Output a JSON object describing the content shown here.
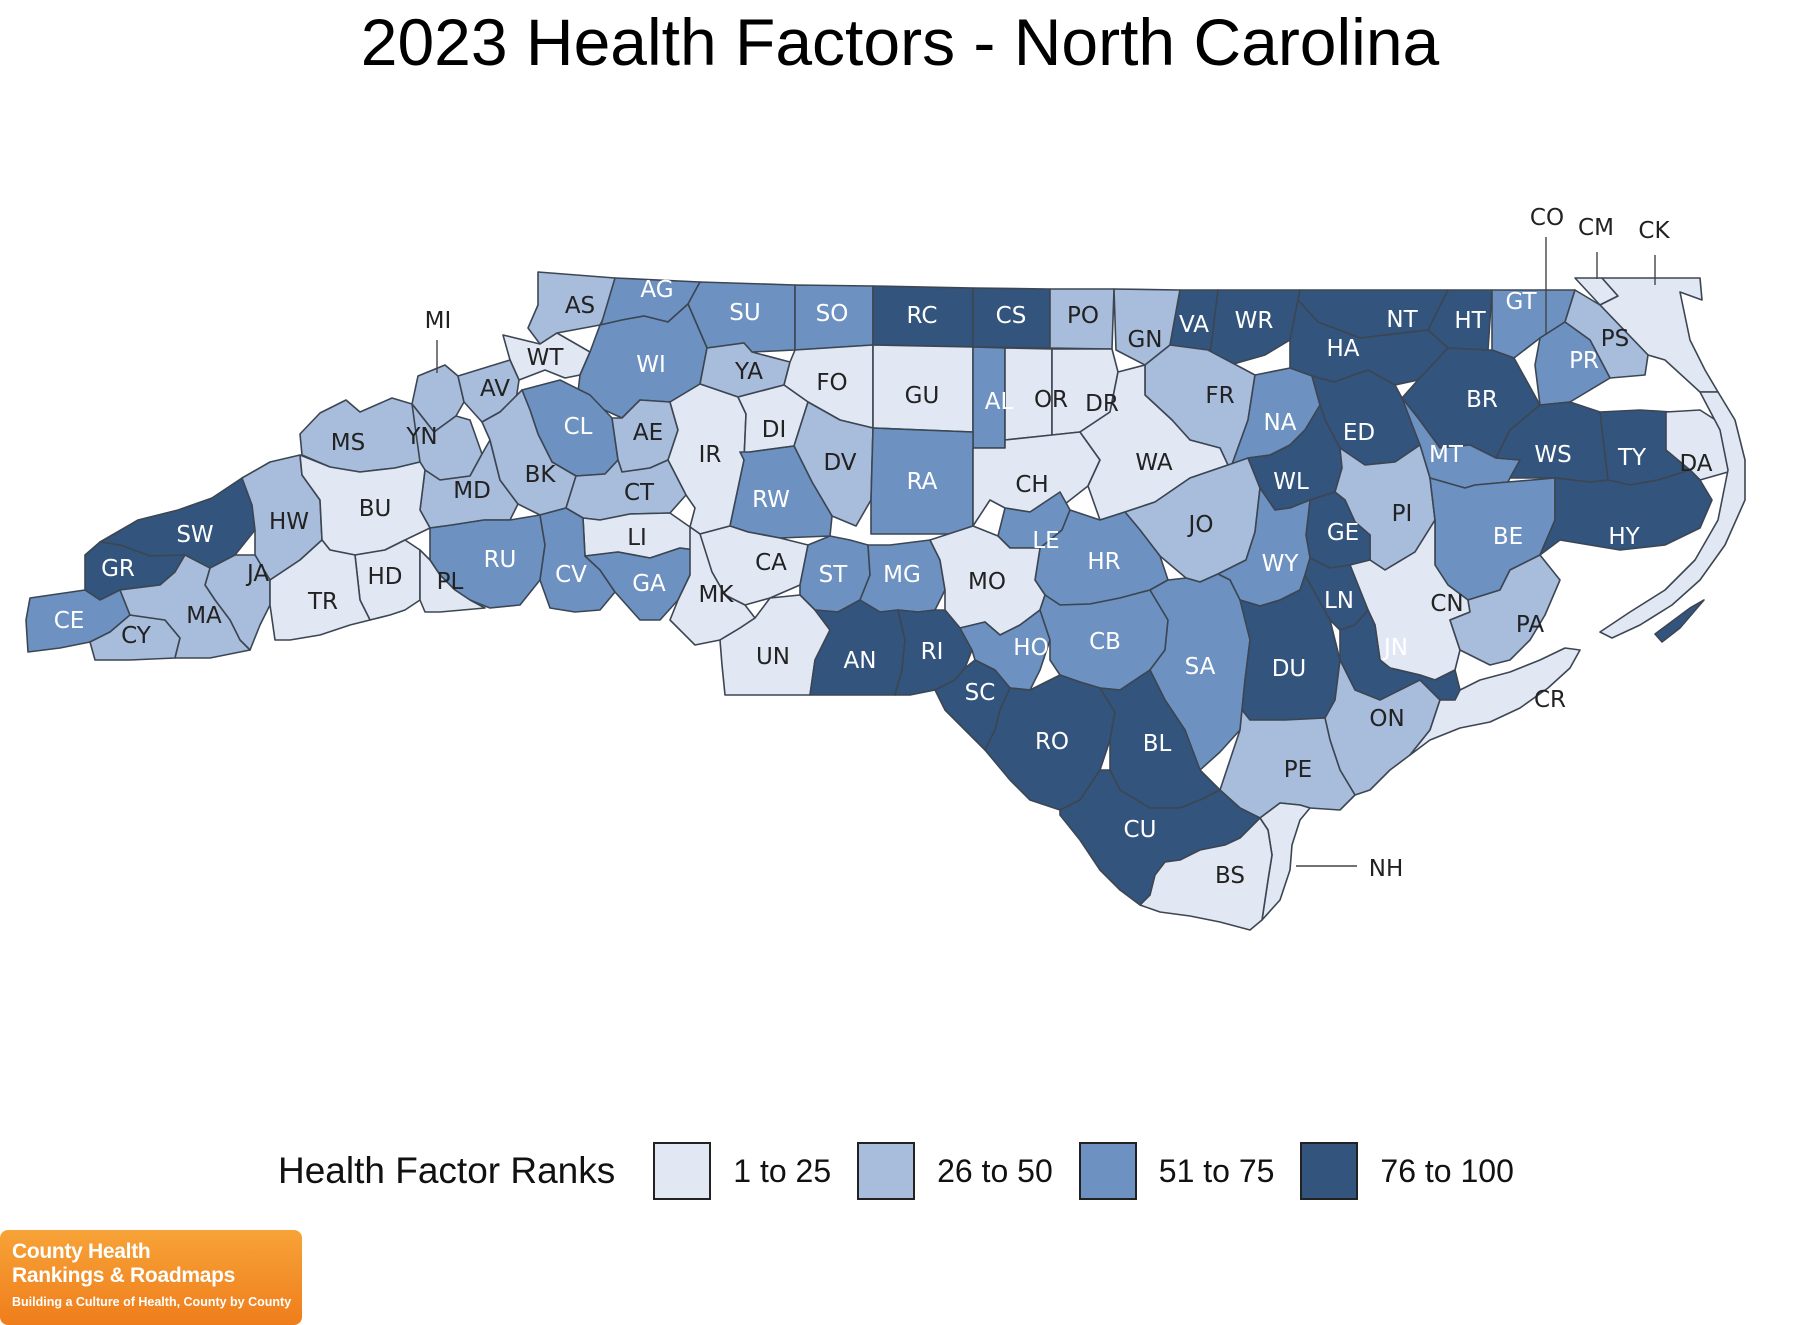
{
  "title": "2023 Health Factors - North Carolina",
  "legend": {
    "title": "Health Factor Ranks",
    "bins": [
      {
        "label": "1 to 25",
        "color": "#e1e8f3"
      },
      {
        "label": "26 to 50",
        "color": "#a8bcdb"
      },
      {
        "label": "51 to 75",
        "color": "#6d92c2"
      },
      {
        "label": "76 to 100",
        "color": "#33547d"
      }
    ]
  },
  "logo": {
    "line1": "County Health",
    "line2": "Rankings & Roadmaps",
    "tagline": "Building a Culture of Health, County by County"
  },
  "counties": [
    {
      "abbr": "AS",
      "bin": 1
    },
    {
      "abbr": "AG",
      "bin": 2
    },
    {
      "abbr": "SU",
      "bin": 2
    },
    {
      "abbr": "SO",
      "bin": 2
    },
    {
      "abbr": "RC",
      "bin": 3
    },
    {
      "abbr": "CS",
      "bin": 3
    },
    {
      "abbr": "PO",
      "bin": 1
    },
    {
      "abbr": "GN",
      "bin": 1
    },
    {
      "abbr": "VA",
      "bin": 3
    },
    {
      "abbr": "WR",
      "bin": 3
    },
    {
      "abbr": "NT",
      "bin": 3
    },
    {
      "abbr": "HT",
      "bin": 3
    },
    {
      "abbr": "GT",
      "bin": 2
    },
    {
      "abbr": "CO",
      "bin": 1
    },
    {
      "abbr": "CM",
      "bin": 0
    },
    {
      "abbr": "CK",
      "bin": 0
    },
    {
      "abbr": "PS",
      "bin": 1
    },
    {
      "abbr": "PR",
      "bin": 2
    },
    {
      "abbr": "MI",
      "bin": 1
    },
    {
      "abbr": "WT",
      "bin": 0
    },
    {
      "abbr": "AV",
      "bin": 1
    },
    {
      "abbr": "WI",
      "bin": 2
    },
    {
      "abbr": "YA",
      "bin": 1
    },
    {
      "abbr": "FO",
      "bin": 0
    },
    {
      "abbr": "GU",
      "bin": 0
    },
    {
      "abbr": "AL",
      "bin": 2
    },
    {
      "abbr": "OR",
      "bin": 0
    },
    {
      "abbr": "DR",
      "bin": 0
    },
    {
      "abbr": "FR",
      "bin": 1
    },
    {
      "abbr": "HA",
      "bin": 3
    },
    {
      "abbr": "BR",
      "bin": 3
    },
    {
      "abbr": "MS",
      "bin": 1
    },
    {
      "abbr": "YN",
      "bin": 1
    },
    {
      "abbr": "CL",
      "bin": 2
    },
    {
      "abbr": "AE",
      "bin": 1
    },
    {
      "abbr": "IR",
      "bin": 0
    },
    {
      "abbr": "DI",
      "bin": 0
    },
    {
      "abbr": "DV",
      "bin": 1
    },
    {
      "abbr": "RA",
      "bin": 2
    },
    {
      "abbr": "CH",
      "bin": 0
    },
    {
      "abbr": "WA",
      "bin": 0
    },
    {
      "abbr": "NA",
      "bin": 2
    },
    {
      "abbr": "ED",
      "bin": 3
    },
    {
      "abbr": "MT",
      "bin": 2
    },
    {
      "abbr": "WS",
      "bin": 3
    },
    {
      "abbr": "TY",
      "bin": 3
    },
    {
      "abbr": "DA",
      "bin": 0
    },
    {
      "abbr": "MD",
      "bin": 1
    },
    {
      "abbr": "BK",
      "bin": 1
    },
    {
      "abbr": "CT",
      "bin": 1
    },
    {
      "abbr": "RW",
      "bin": 2
    },
    {
      "abbr": "LE",
      "bin": 2
    },
    {
      "abbr": "JO",
      "bin": 1
    },
    {
      "abbr": "WL",
      "bin": 3
    },
    {
      "abbr": "PI",
      "bin": 1
    },
    {
      "abbr": "BE",
      "bin": 2
    },
    {
      "abbr": "HY",
      "bin": 3
    },
    {
      "abbr": "SW",
      "bin": 3
    },
    {
      "abbr": "HW",
      "bin": 1
    },
    {
      "abbr": "BU",
      "bin": 0
    },
    {
      "abbr": "LI",
      "bin": 0
    },
    {
      "abbr": "CA",
      "bin": 0
    },
    {
      "abbr": "HR",
      "bin": 2
    },
    {
      "abbr": "GE",
      "bin": 3
    },
    {
      "abbr": "WY",
      "bin": 2
    },
    {
      "abbr": "GR",
      "bin": 3
    },
    {
      "abbr": "JA",
      "bin": 1
    },
    {
      "abbr": "RU",
      "bin": 2
    },
    {
      "abbr": "CV",
      "bin": 2
    },
    {
      "abbr": "GA",
      "bin": 2
    },
    {
      "abbr": "MK",
      "bin": 0
    },
    {
      "abbr": "ST",
      "bin": 2
    },
    {
      "abbr": "MG",
      "bin": 2
    },
    {
      "abbr": "MO",
      "bin": 0
    },
    {
      "abbr": "CN",
      "bin": 0
    },
    {
      "abbr": "HD",
      "bin": 0
    },
    {
      "abbr": "PL",
      "bin": 0
    },
    {
      "abbr": "TR",
      "bin": 0
    },
    {
      "abbr": "CE",
      "bin": 2
    },
    {
      "abbr": "CY",
      "bin": 1
    },
    {
      "abbr": "MA",
      "bin": 1
    },
    {
      "abbr": "UN",
      "bin": 0
    },
    {
      "abbr": "AN",
      "bin": 3
    },
    {
      "abbr": "RI",
      "bin": 3
    },
    {
      "abbr": "HO",
      "bin": 2
    },
    {
      "abbr": "CB",
      "bin": 2
    },
    {
      "abbr": "SA",
      "bin": 2
    },
    {
      "abbr": "DU",
      "bin": 3
    },
    {
      "abbr": "LN",
      "bin": 3
    },
    {
      "abbr": "JN",
      "bin": 3
    },
    {
      "abbr": "PA",
      "bin": 1
    },
    {
      "abbr": "SC",
      "bin": 3
    },
    {
      "abbr": "RO",
      "bin": 3
    },
    {
      "abbr": "BL",
      "bin": 3
    },
    {
      "abbr": "ON",
      "bin": 1
    },
    {
      "abbr": "CR",
      "bin": 0
    },
    {
      "abbr": "PE",
      "bin": 1
    },
    {
      "abbr": "CU",
      "bin": 3
    },
    {
      "abbr": "NH",
      "bin": 0
    },
    {
      "abbr": "BS",
      "bin": 0
    }
  ]
}
